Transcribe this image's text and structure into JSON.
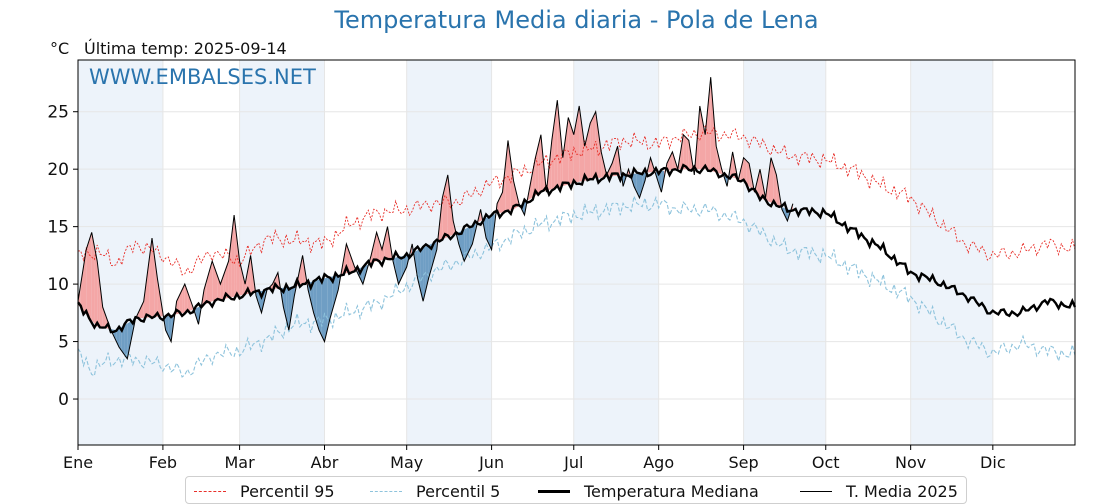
{
  "title": "Temperatura Media diaria - Pola de Lena",
  "unit": "°C",
  "last_temp": "Última temp: 2025-09-14",
  "watermark": "WWW.EMBALSES.NET",
  "colors": {
    "title": "#2a74ad",
    "p95": "#e8302a",
    "p5": "#8ec3dc",
    "median": "#000000",
    "actual": "#000000",
    "above_fill": "#f4a6a6",
    "below_fill": "#6f9ec4",
    "band": "#edf3fa"
  },
  "legend": [
    {
      "key": "p95",
      "label": "Percentil 95"
    },
    {
      "key": "p5",
      "label": "Percentil 5"
    },
    {
      "key": "median",
      "label": "Temperatura Mediana"
    },
    {
      "key": "actual",
      "label": "T. Media 2025"
    }
  ],
  "chart_data": {
    "type": "line",
    "x_unit": "day_of_year",
    "xlim": [
      1,
      365
    ],
    "ylim": [
      -4,
      29.5
    ],
    "yticks": [
      0,
      5,
      10,
      15,
      20,
      25
    ],
    "months": [
      {
        "label": "Ene",
        "day": 1
      },
      {
        "label": "Feb",
        "day": 32
      },
      {
        "label": "Mar",
        "day": 60
      },
      {
        "label": "Abr",
        "day": 91
      },
      {
        "label": "May",
        "day": 121
      },
      {
        "label": "Jun",
        "day": 152
      },
      {
        "label": "Jul",
        "day": 182
      },
      {
        "label": "Ago",
        "day": 213
      },
      {
        "label": "Sep",
        "day": 244
      },
      {
        "label": "Oct",
        "day": 274
      },
      {
        "label": "Nov",
        "day": 305
      },
      {
        "label": "Dic",
        "day": 335
      }
    ],
    "series": [
      {
        "key": "p95",
        "name": "Percentil 95",
        "points": [
          [
            1,
            12.5
          ],
          [
            8,
            12.8
          ],
          [
            15,
            11.8
          ],
          [
            22,
            13.5
          ],
          [
            32,
            12.5
          ],
          [
            40,
            11.0
          ],
          [
            50,
            12.8
          ],
          [
            60,
            12.0
          ],
          [
            70,
            14.0
          ],
          [
            80,
            13.8
          ],
          [
            91,
            13.5
          ],
          [
            100,
            15.2
          ],
          [
            110,
            16.2
          ],
          [
            121,
            16.5
          ],
          [
            130,
            17.0
          ],
          [
            140,
            17.2
          ],
          [
            152,
            18.8
          ],
          [
            160,
            19.5
          ],
          [
            170,
            20.5
          ],
          [
            182,
            21.5
          ],
          [
            190,
            21.8
          ],
          [
            200,
            22.5
          ],
          [
            213,
            22.2
          ],
          [
            220,
            22.8
          ],
          [
            230,
            23.2
          ],
          [
            244,
            22.8
          ],
          [
            250,
            22.2
          ],
          [
            260,
            21.2
          ],
          [
            274,
            20.8
          ],
          [
            285,
            19.8
          ],
          [
            295,
            18.5
          ],
          [
            305,
            17.5
          ],
          [
            315,
            15.5
          ],
          [
            325,
            13.5
          ],
          [
            335,
            12.5
          ],
          [
            345,
            12.8
          ],
          [
            355,
            13.5
          ],
          [
            365,
            13.0
          ]
        ]
      },
      {
        "key": "p5",
        "name": "Percentil 5",
        "points": [
          [
            1,
            4.0
          ],
          [
            6,
            2.5
          ],
          [
            12,
            3.3
          ],
          [
            20,
            3.5
          ],
          [
            32,
            3.0
          ],
          [
            40,
            2.2
          ],
          [
            50,
            3.8
          ],
          [
            60,
            4.2
          ],
          [
            70,
            5.2
          ],
          [
            80,
            6.5
          ],
          [
            91,
            6.8
          ],
          [
            100,
            7.5
          ],
          [
            110,
            8.3
          ],
          [
            121,
            9.8
          ],
          [
            130,
            11.0
          ],
          [
            140,
            12.0
          ],
          [
            152,
            13.2
          ],
          [
            160,
            14.2
          ],
          [
            170,
            15.2
          ],
          [
            182,
            16.0
          ],
          [
            190,
            16.3
          ],
          [
            200,
            16.8
          ],
          [
            213,
            17.0
          ],
          [
            220,
            16.5
          ],
          [
            230,
            16.5
          ],
          [
            244,
            15.5
          ],
          [
            250,
            14.5
          ],
          [
            260,
            13.0
          ],
          [
            274,
            12.5
          ],
          [
            285,
            11.2
          ],
          [
            295,
            10.0
          ],
          [
            305,
            8.8
          ],
          [
            315,
            7.0
          ],
          [
            325,
            5.2
          ],
          [
            335,
            4.0
          ],
          [
            345,
            4.8
          ],
          [
            355,
            4.2
          ],
          [
            365,
            3.8
          ]
        ]
      },
      {
        "key": "median",
        "name": "Temperatura Mediana",
        "points": [
          [
            1,
            8.2
          ],
          [
            8,
            6.3
          ],
          [
            15,
            6.0
          ],
          [
            22,
            7.0
          ],
          [
            32,
            7.2
          ],
          [
            40,
            7.5
          ],
          [
            50,
            8.5
          ],
          [
            60,
            9.0
          ],
          [
            70,
            9.5
          ],
          [
            80,
            9.8
          ],
          [
            91,
            10.5
          ],
          [
            100,
            11.0
          ],
          [
            110,
            12.0
          ],
          [
            121,
            12.5
          ],
          [
            130,
            13.5
          ],
          [
            140,
            14.5
          ],
          [
            152,
            16.0
          ],
          [
            160,
            16.5
          ],
          [
            170,
            18.0
          ],
          [
            182,
            18.8
          ],
          [
            190,
            19.2
          ],
          [
            200,
            19.5
          ],
          [
            213,
            19.8
          ],
          [
            220,
            20.0
          ],
          [
            230,
            20.0
          ],
          [
            244,
            19.0
          ],
          [
            250,
            17.5
          ],
          [
            260,
            16.5
          ],
          [
            274,
            16.2
          ],
          [
            285,
            14.5
          ],
          [
            295,
            13.0
          ],
          [
            305,
            11.0
          ],
          [
            315,
            10.2
          ],
          [
            325,
            9.0
          ],
          [
            335,
            7.5
          ],
          [
            345,
            7.5
          ],
          [
            355,
            8.5
          ],
          [
            365,
            8.0
          ]
        ]
      },
      {
        "key": "actual",
        "name": "T. Media 2025",
        "points": [
          [
            1,
            8.5
          ],
          [
            4,
            13.0
          ],
          [
            6,
            14.5
          ],
          [
            8,
            12.0
          ],
          [
            10,
            8.0
          ],
          [
            13,
            6.0
          ],
          [
            16,
            4.5
          ],
          [
            19,
            3.5
          ],
          [
            22,
            7.0
          ],
          [
            25,
            8.5
          ],
          [
            28,
            14.0
          ],
          [
            30,
            10.5
          ],
          [
            33,
            6.0
          ],
          [
            35,
            5.0
          ],
          [
            37,
            8.5
          ],
          [
            40,
            10.0
          ],
          [
            43,
            8.0
          ],
          [
            45,
            6.5
          ],
          [
            47,
            9.5
          ],
          [
            50,
            12.0
          ],
          [
            53,
            10.0
          ],
          [
            56,
            12.0
          ],
          [
            58,
            16.0
          ],
          [
            60,
            12.0
          ],
          [
            62,
            10.0
          ],
          [
            64,
            12.5
          ],
          [
            66,
            9.0
          ],
          [
            68,
            7.5
          ],
          [
            70,
            9.5
          ],
          [
            72,
            10.0
          ],
          [
            74,
            11.0
          ],
          [
            76,
            8.0
          ],
          [
            78,
            6.0
          ],
          [
            80,
            9.0
          ],
          [
            83,
            12.5
          ],
          [
            85,
            9.5
          ],
          [
            87,
            7.5
          ],
          [
            89,
            6.0
          ],
          [
            91,
            5.0
          ],
          [
            93,
            7.0
          ],
          [
            96,
            9.5
          ],
          [
            99,
            13.5
          ],
          [
            102,
            11.5
          ],
          [
            105,
            10.0
          ],
          [
            108,
            12.5
          ],
          [
            110,
            14.5
          ],
          [
            112,
            13.0
          ],
          [
            114,
            15.0
          ],
          [
            116,
            12.0
          ],
          [
            118,
            10.0
          ],
          [
            121,
            11.5
          ],
          [
            123,
            13.5
          ],
          [
            125,
            10.5
          ],
          [
            127,
            8.5
          ],
          [
            129,
            10.5
          ],
          [
            132,
            13.0
          ],
          [
            134,
            17.5
          ],
          [
            136,
            19.5
          ],
          [
            138,
            15.5
          ],
          [
            140,
            13.5
          ],
          [
            142,
            12.0
          ],
          [
            145,
            13.5
          ],
          [
            148,
            16.5
          ],
          [
            150,
            14.0
          ],
          [
            152,
            13.0
          ],
          [
            154,
            17.0
          ],
          [
            156,
            18.0
          ],
          [
            158,
            22.5
          ],
          [
            160,
            19.0
          ],
          [
            162,
            17.0
          ],
          [
            164,
            16.0
          ],
          [
            166,
            18.5
          ],
          [
            168,
            21.0
          ],
          [
            170,
            23.0
          ],
          [
            172,
            18.0
          ],
          [
            174,
            22.5
          ],
          [
            176,
            26.0
          ],
          [
            178,
            21.0
          ],
          [
            180,
            24.5
          ],
          [
            182,
            23.0
          ],
          [
            184,
            25.5
          ],
          [
            186,
            22.0
          ],
          [
            188,
            24.0
          ],
          [
            190,
            25.0
          ],
          [
            192,
            21.5
          ],
          [
            194,
            19.5
          ],
          [
            196,
            20.5
          ],
          [
            198,
            22.0
          ],
          [
            200,
            18.5
          ],
          [
            202,
            20.0
          ],
          [
            204,
            18.5
          ],
          [
            206,
            17.5
          ],
          [
            208,
            19.0
          ],
          [
            210,
            21.0
          ],
          [
            212,
            19.5
          ],
          [
            214,
            18.0
          ],
          [
            216,
            20.5
          ],
          [
            218,
            21.5
          ],
          [
            220,
            20.0
          ],
          [
            222,
            23.0
          ],
          [
            224,
            22.5
          ],
          [
            226,
            19.5
          ],
          [
            228,
            25.5
          ],
          [
            230,
            23.0
          ],
          [
            232,
            28.0
          ],
          [
            234,
            22.0
          ],
          [
            236,
            20.0
          ],
          [
            238,
            18.5
          ],
          [
            240,
            21.5
          ],
          [
            242,
            19.0
          ],
          [
            244,
            21.0
          ],
          [
            246,
            20.5
          ],
          [
            248,
            18.0
          ],
          [
            250,
            20.0
          ],
          [
            252,
            17.5
          ],
          [
            254,
            21.0
          ],
          [
            256,
            19.5
          ],
          [
            258,
            16.5
          ],
          [
            260,
            15.5
          ],
          [
            262,
            17.0
          ]
        ]
      }
    ]
  }
}
